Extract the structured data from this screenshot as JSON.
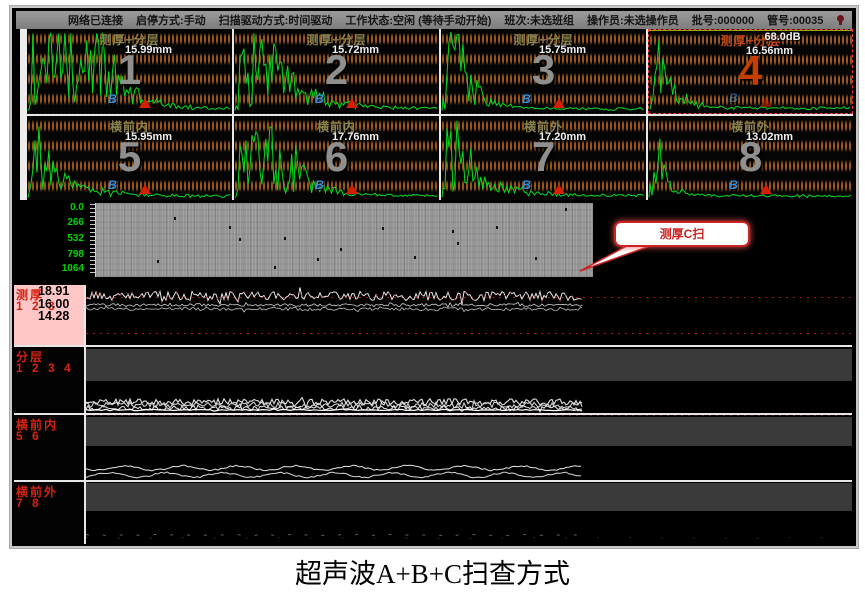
{
  "status_bar": {
    "items": [
      "网络已连接",
      "启停方式:手动",
      "扫描驱动方式:时间驱动",
      "工作状态:空闲 (等待手动开始)",
      "班次:未选班组",
      "操作员:未选操作员",
      "批号:000000",
      "管号:00035"
    ]
  },
  "panels": [
    {
      "label": "测厚+分层",
      "value": "15.99mm",
      "num": "1"
    },
    {
      "label": "测厚+分层",
      "value": "15.72mm",
      "num": "2"
    },
    {
      "label": "测厚+分层",
      "value": "15.75mm",
      "num": "3"
    },
    {
      "label": "测厚+分层",
      "gain": "68.0dB",
      "value": "16.56mm",
      "num": "4"
    },
    {
      "label": "横前内",
      "value": "15.95mm",
      "num": "5"
    },
    {
      "label": "横前内",
      "value": "17.76mm",
      "num": "6"
    },
    {
      "label": "横前外",
      "value": "17.20mm",
      "num": "7"
    },
    {
      "label": "横前外",
      "value": "13.02mm",
      "num": "8"
    }
  ],
  "icons": {
    "b": "B",
    "a": "A"
  },
  "cscan": {
    "axis_labels": [
      "0.0",
      "266",
      "532",
      "798",
      "1064"
    ],
    "callout": "测厚C扫"
  },
  "strips": [
    {
      "name": "测厚",
      "channels": "1 2 3",
      "values": [
        "18.91",
        "16.00",
        "14.28"
      ]
    },
    {
      "name": "分层",
      "channels": "1 2 3 4"
    },
    {
      "name": "横前内",
      "channels": "5 6"
    },
    {
      "name": "横前外",
      "channels": "7 8"
    }
  ],
  "caption": "超声波A+B+C扫查方式",
  "colors": {
    "waveform_green": "#00dd22",
    "alarm_red": "#cc2211",
    "selected_orange": "#c43e00",
    "label_pink": "#ffc6c6"
  }
}
